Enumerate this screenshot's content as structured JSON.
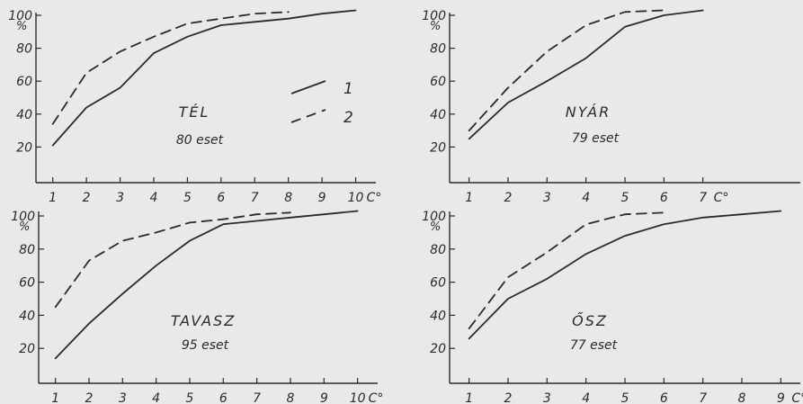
{
  "chart_data": [
    {
      "type": "line",
      "xlabel": "",
      "x_unit": "C°",
      "ylabel": "%",
      "ylim": [
        0,
        100
      ],
      "yticks": [
        20,
        40,
        60,
        80,
        100
      ],
      "xticks": [
        "1",
        "2",
        "3",
        "4",
        "5",
        "6",
        "7",
        "8",
        "9",
        "10"
      ],
      "xlim": [
        0.5,
        10.6
      ],
      "season": "TÉL",
      "cases": "80 eset",
      "legend": [
        {
          "label": "1",
          "style": "solid"
        },
        {
          "label": "2",
          "style": "dashed"
        }
      ],
      "series": [
        {
          "name": "1",
          "style": "solid",
          "x": [
            1,
            2,
            3,
            4,
            5,
            6,
            7,
            8,
            9,
            10
          ],
          "y": [
            21,
            44,
            56,
            77,
            87,
            94,
            96,
            98,
            101,
            103
          ]
        },
        {
          "name": "2",
          "style": "dashed",
          "x": [
            1,
            2,
            3,
            4,
            5,
            6,
            7,
            8
          ],
          "y": [
            34,
            65,
            78,
            87,
            95,
            98,
            101,
            102
          ]
        }
      ]
    },
    {
      "type": "line",
      "xlabel": "",
      "x_unit": "C°",
      "ylabel": "%",
      "ylim": [
        0,
        100
      ],
      "yticks": [
        20,
        40,
        60,
        80,
        100
      ],
      "xticks": [
        "1",
        "2",
        "3",
        "4",
        "5",
        "6",
        "7"
      ],
      "xlim": [
        0.5,
        9.5
      ],
      "season": "NYÁR",
      "cases": "79 eset",
      "series": [
        {
          "name": "1",
          "style": "solid",
          "x": [
            1,
            2,
            3,
            4,
            5,
            6,
            7
          ],
          "y": [
            25,
            47,
            60,
            74,
            93,
            100,
            103
          ]
        },
        {
          "name": "2",
          "style": "dashed",
          "x": [
            1,
            2,
            3,
            4,
            5,
            6
          ],
          "y": [
            30,
            56,
            78,
            94,
            102,
            103
          ]
        }
      ]
    },
    {
      "type": "line",
      "xlabel": "",
      "x_unit": "C°",
      "ylabel": "%",
      "ylim": [
        0,
        100
      ],
      "yticks": [
        20,
        40,
        60,
        80,
        100
      ],
      "xticks": [
        "1",
        "2",
        "3",
        "4",
        "5",
        "6",
        "7",
        "8",
        "9",
        "10"
      ],
      "xlim": [
        0.5,
        10.6
      ],
      "season": "TAVASZ",
      "cases": "95 eset",
      "series": [
        {
          "name": "1",
          "style": "solid",
          "x": [
            1,
            2,
            3,
            4,
            5,
            6,
            7,
            8,
            9,
            10
          ],
          "y": [
            14,
            35,
            53,
            70,
            85,
            95,
            97,
            99,
            101,
            103
          ]
        },
        {
          "name": "2",
          "style": "dashed",
          "x": [
            1,
            2,
            3,
            4,
            5,
            6,
            7,
            8
          ],
          "y": [
            45,
            73,
            85,
            90,
            96,
            98,
            101,
            102
          ]
        }
      ]
    },
    {
      "type": "line",
      "xlabel": "",
      "x_unit": "C°",
      "ylabel": "%",
      "ylim": [
        0,
        100
      ],
      "yticks": [
        20,
        40,
        60,
        80,
        100
      ],
      "xticks": [
        "1",
        "2",
        "3",
        "4",
        "5",
        "6",
        "7",
        "8",
        "9"
      ],
      "xlim": [
        0.5,
        9.5
      ],
      "season": "ŐSZ",
      "cases": "77 eset",
      "series": [
        {
          "name": "1",
          "style": "solid",
          "x": [
            1,
            2,
            3,
            4,
            5,
            6,
            7,
            8,
            9
          ],
          "y": [
            26,
            50,
            62,
            77,
            88,
            95,
            99,
            101,
            103
          ]
        },
        {
          "name": "2",
          "style": "dashed",
          "x": [
            1,
            2,
            3,
            4,
            5,
            6
          ],
          "y": [
            32,
            63,
            78,
            95,
            101,
            102
          ]
        }
      ]
    }
  ]
}
